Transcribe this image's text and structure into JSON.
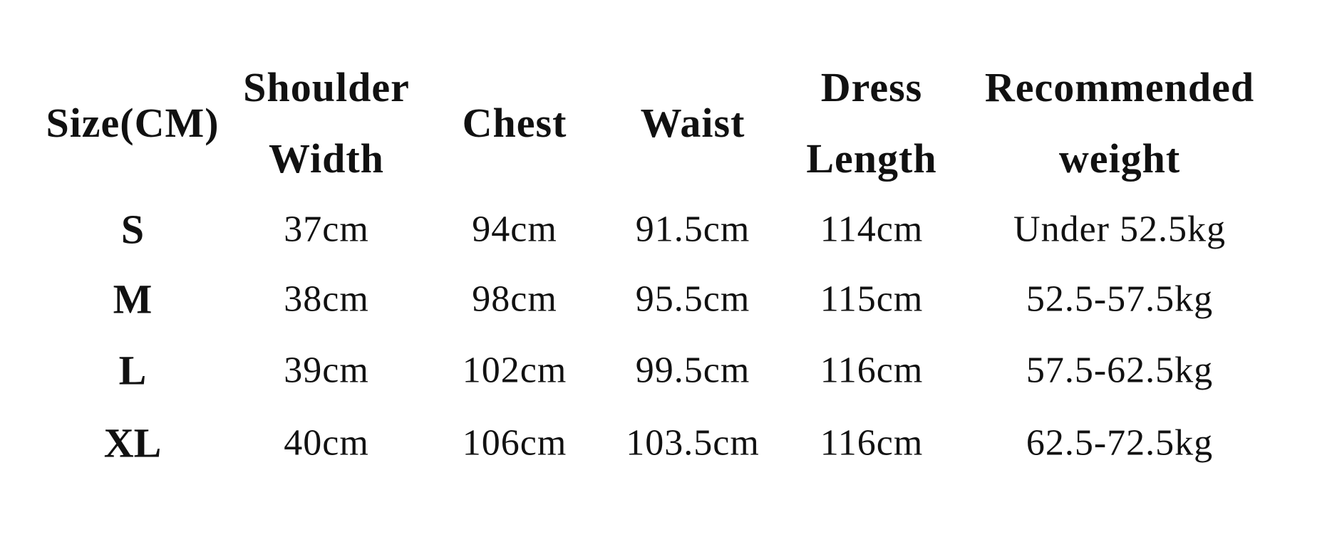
{
  "table": {
    "headers": [
      {
        "line1": "Size(CM)",
        "line2": ""
      },
      {
        "line1": "Shoulder",
        "line2": "Width"
      },
      {
        "line1": "Chest",
        "line2": ""
      },
      {
        "line1": "Waist",
        "line2": ""
      },
      {
        "line1": "Dress",
        "line2": "Length"
      },
      {
        "line1": "Recommended",
        "line2": "weight"
      }
    ],
    "rows": [
      [
        "S",
        "37cm",
        "94cm",
        "91.5cm",
        "114cm",
        "Under 52.5kg"
      ],
      [
        "M",
        "38cm",
        "98cm",
        "95.5cm",
        "115cm",
        "52.5-57.5kg"
      ],
      [
        "L",
        "39cm",
        "102cm",
        "99.5cm",
        "116cm",
        "57.5-62.5kg"
      ],
      [
        "XL",
        "40cm",
        "106cm",
        "103.5cm",
        "116cm",
        "62.5-72.5kg"
      ]
    ]
  }
}
